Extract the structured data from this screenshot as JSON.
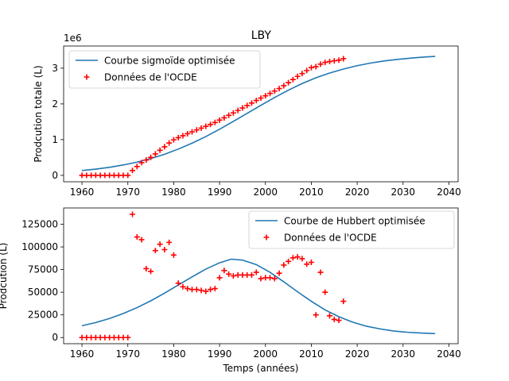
{
  "figure": {
    "title": "LBY"
  },
  "chart_data": [
    {
      "type": "line",
      "title": "LBY",
      "ylabel": "Prodcution totale (L)",
      "xlabel": "",
      "offset_text": "1e6",
      "xlim": [
        1956,
        2042
      ],
      "ylim": [
        -180000,
        3620000
      ],
      "x_ticks": [
        1960,
        1970,
        1980,
        1990,
        2000,
        2010,
        2020,
        2030,
        2040
      ],
      "y_ticks": [
        0,
        1000000,
        2000000,
        3000000
      ],
      "y_tick_labels": [
        "0",
        "1",
        "2",
        "3"
      ],
      "legend_position": "upper left",
      "series": [
        {
          "name": "Courbe sigmoïde optimisée",
          "kind": "line",
          "color": "#1f77b4",
          "x": [
            1960,
            1963,
            1966,
            1969,
            1972,
            1975,
            1978,
            1981,
            1984,
            1987,
            1990,
            1993,
            1996,
            1999,
            2002,
            2005,
            2008,
            2011,
            2014,
            2017,
            2020,
            2023,
            2026,
            2029,
            2032,
            2035,
            2037
          ],
          "y": [
            135000,
            175000,
            225000,
            290000,
            370000,
            470000,
            590000,
            735000,
            900000,
            1085000,
            1290000,
            1510000,
            1735000,
            1960000,
            2180000,
            2385000,
            2570000,
            2730000,
            2865000,
            2975000,
            3070000,
            3145000,
            3205000,
            3250000,
            3285000,
            3315000,
            3330000
          ]
        },
        {
          "name": "Données de l'OCDE",
          "kind": "scatter",
          "marker": "+",
          "color": "#ff0000",
          "x": [
            1960,
            1961,
            1962,
            1963,
            1964,
            1965,
            1966,
            1967,
            1968,
            1969,
            1970,
            1971,
            1972,
            1973,
            1974,
            1975,
            1976,
            1977,
            1978,
            1979,
            1980,
            1981,
            1982,
            1983,
            1984,
            1985,
            1986,
            1987,
            1988,
            1989,
            1990,
            1991,
            1992,
            1993,
            1994,
            1995,
            1996,
            1997,
            1998,
            1999,
            2000,
            2001,
            2002,
            2003,
            2004,
            2005,
            2006,
            2007,
            2008,
            2009,
            2010,
            2011,
            2012,
            2013,
            2014,
            2015,
            2016,
            2017
          ],
          "y": [
            0,
            0,
            0,
            0,
            0,
            0,
            0,
            0,
            0,
            0,
            0,
            136000,
            247000,
            355000,
            430000,
            503000,
            600000,
            703000,
            800000,
            905000,
            995000,
            1055000,
            1110000,
            1165000,
            1217000,
            1270000,
            1322000,
            1372000,
            1425000,
            1480000,
            1546000,
            1610000,
            1680000,
            1748000,
            1817000,
            1886000,
            1955000,
            2024000,
            2096000,
            2162000,
            2228000,
            2293000,
            2359000,
            2429000,
            2510000,
            2594000,
            2682000,
            2770000,
            2850000,
            2934000,
            3016000,
            3041000,
            3112000,
            3162000,
            3186000,
            3206000,
            3225000,
            3265000
          ]
        }
      ]
    },
    {
      "type": "line",
      "title": "",
      "ylabel": "Prodcution (L)",
      "xlabel": "Temps (années)",
      "xlim": [
        1956,
        2042
      ],
      "ylim": [
        -6800,
        143000
      ],
      "x_ticks": [
        1960,
        1970,
        1980,
        1990,
        2000,
        2010,
        2020,
        2030,
        2040
      ],
      "y_ticks": [
        0,
        25000,
        50000,
        75000,
        100000,
        125000
      ],
      "y_tick_labels": [
        "0",
        "25000",
        "50000",
        "75000",
        "100000",
        "125000"
      ],
      "legend_position": "upper right",
      "series": [
        {
          "name": "Courbe de Hubbert optimisée",
          "kind": "line",
          "color": "#1f77b4",
          "x": [
            1960,
            1963,
            1966,
            1969,
            1972,
            1975,
            1978,
            1981,
            1984,
            1987,
            1990,
            1992.5,
            1995,
            1998,
            2001,
            2004,
            2007,
            2010,
            2013,
            2016,
            2019,
            2022,
            2025,
            2028,
            2031,
            2034,
            2037
          ],
          "y": [
            13000,
            16500,
            21000,
            26500,
            33000,
            40500,
            49000,
            58000,
            67000,
            75500,
            82500,
            86500,
            85500,
            80500,
            72000,
            61500,
            50500,
            40000,
            30500,
            23000,
            17000,
            12500,
            9500,
            7200,
            5800,
            5000,
            4300
          ]
        },
        {
          "name": "Données de l'OCDE",
          "kind": "scatter",
          "marker": "+",
          "color": "#ff0000",
          "x": [
            1960,
            1961,
            1962,
            1963,
            1964,
            1965,
            1966,
            1967,
            1968,
            1969,
            1970,
            1971,
            1972,
            1973,
            1974,
            1975,
            1976,
            1977,
            1978,
            1979,
            1980,
            1981,
            1982,
            1983,
            1984,
            1985,
            1986,
            1987,
            1988,
            1989,
            1990,
            1991,
            1992,
            1993,
            1994,
            1995,
            1996,
            1997,
            1998,
            1999,
            2000,
            2001,
            2002,
            2003,
            2004,
            2005,
            2006,
            2007,
            2008,
            2009,
            2010,
            2011,
            2012,
            2013,
            2014,
            2015,
            2016,
            2017
          ],
          "y": [
            0,
            0,
            0,
            0,
            0,
            0,
            0,
            0,
            0,
            0,
            0,
            136000,
            111000,
            108000,
            76000,
            73000,
            96000,
            103000,
            97000,
            105000,
            91000,
            60000,
            56000,
            54000,
            53000,
            53000,
            52000,
            51000,
            53000,
            54000,
            66000,
            74000,
            70000,
            68000,
            69000,
            69000,
            69000,
            69000,
            72000,
            65000,
            66000,
            66000,
            65000,
            71000,
            80000,
            84000,
            88000,
            89000,
            87000,
            81000,
            83000,
            25000,
            72000,
            50000,
            24000,
            20000,
            19000,
            40000
          ]
        }
      ]
    }
  ]
}
